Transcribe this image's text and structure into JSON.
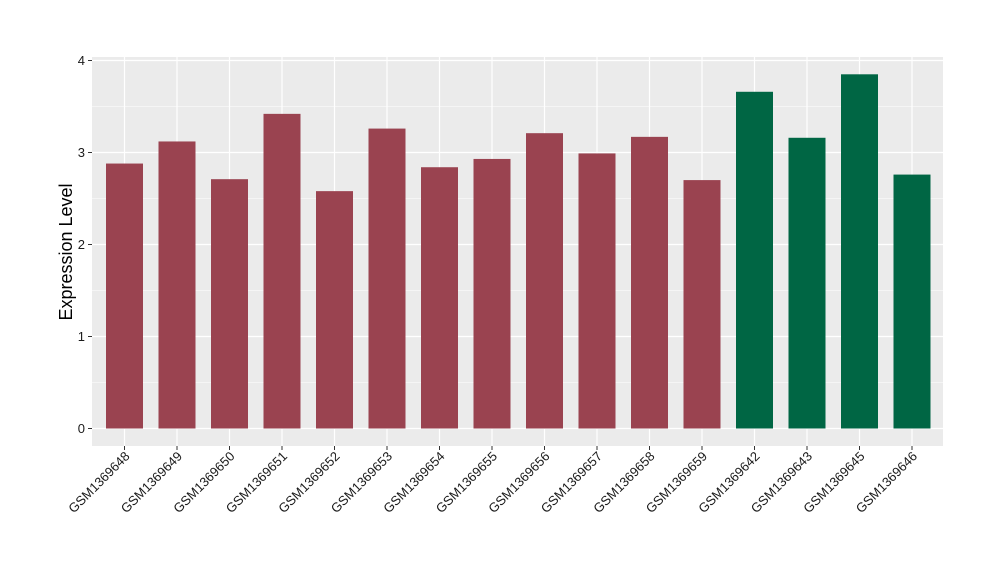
{
  "chart_data": {
    "type": "bar",
    "title": "",
    "xlabel": "",
    "ylabel": "Expression Level",
    "ylim": [
      0,
      4
    ],
    "yticks": [
      0,
      1,
      2,
      3,
      4
    ],
    "grid": true,
    "legend": "none",
    "categories": [
      "GSM1369648",
      "GSM1369649",
      "GSM1369650",
      "GSM1369651",
      "GSM1369652",
      "GSM1369653",
      "GSM1369654",
      "GSM1369655",
      "GSM1369656",
      "GSM1369657",
      "GSM1369658",
      "GSM1369659",
      "GSM1369642",
      "GSM1369643",
      "GSM1369645",
      "GSM1369646"
    ],
    "values": [
      2.88,
      3.12,
      2.71,
      3.42,
      2.58,
      3.26,
      2.84,
      2.93,
      3.21,
      2.99,
      3.17,
      2.7,
      3.66,
      3.16,
      3.85,
      2.76
    ],
    "bar_colors": [
      "#9a4350",
      "#9a4350",
      "#9a4350",
      "#9a4350",
      "#9a4350",
      "#9a4350",
      "#9a4350",
      "#9a4350",
      "#9a4350",
      "#9a4350",
      "#9a4350",
      "#9a4350",
      "#006644",
      "#006644",
      "#006644",
      "#006644"
    ],
    "panel_background": "#ebebeb",
    "grid_color": "#ffffff"
  }
}
